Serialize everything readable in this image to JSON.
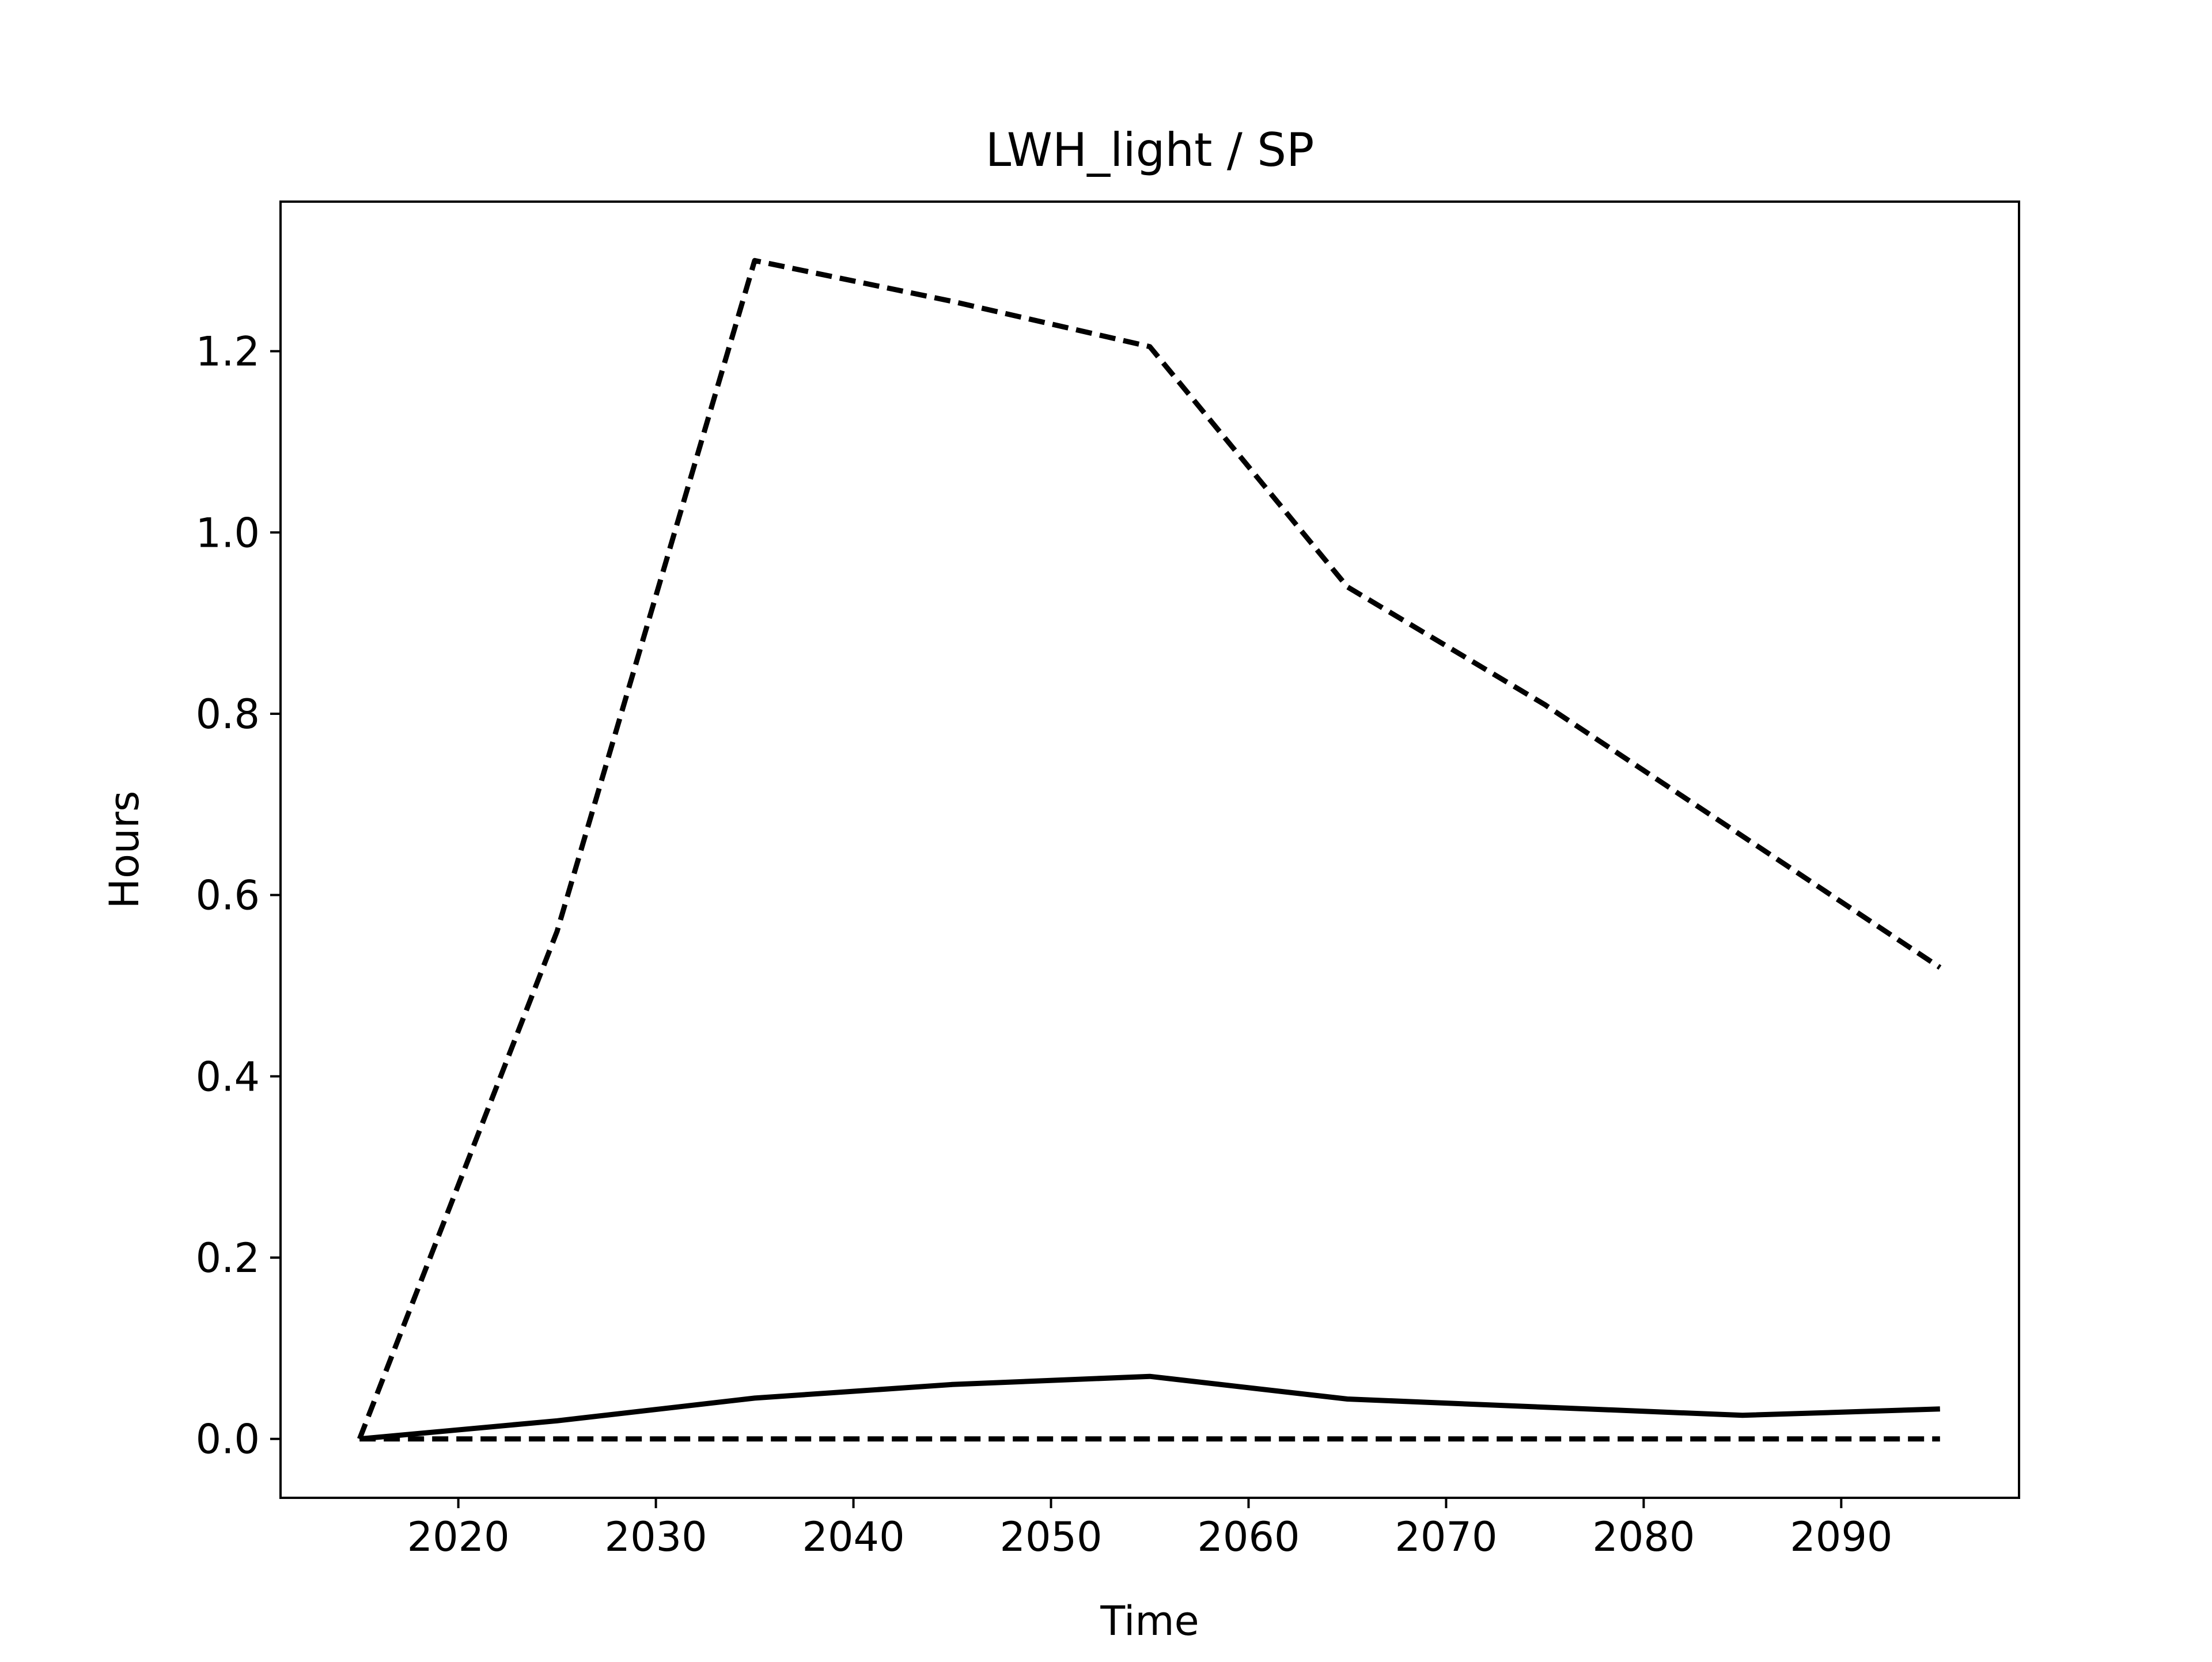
{
  "chart_data": {
    "type": "line",
    "title": "LWH_light / SP",
    "xlabel": "Time",
    "ylabel": "Hours",
    "xlim": [
      2011,
      2099
    ],
    "ylim": [
      -0.065,
      1.365
    ],
    "xticks": [
      2020,
      2030,
      2040,
      2050,
      2060,
      2070,
      2080,
      2090
    ],
    "xtick_labels": [
      "2020",
      "2030",
      "2040",
      "2050",
      "2060",
      "2070",
      "2080",
      "2090"
    ],
    "yticks": [
      0.0,
      0.2,
      0.4,
      0.6,
      0.8,
      1.0,
      1.2
    ],
    "ytick_labels": [
      "0.0",
      "0.2",
      "0.4",
      "0.6",
      "0.8",
      "1.0",
      "1.2"
    ],
    "grid": false,
    "legend": "none",
    "x": [
      2015,
      2025,
      2035,
      2045,
      2055,
      2065,
      2075,
      2085,
      2095
    ],
    "series": [
      {
        "style": "dashed",
        "color": "#000000",
        "values": [
          0.0,
          0.56,
          1.3,
          1.255,
          1.205,
          0.94,
          0.81,
          0.665,
          0.52
        ]
      },
      {
        "style": "solid",
        "color": "#000000",
        "values": [
          0.0,
          0.02,
          0.045,
          0.06,
          0.069,
          0.044,
          0.035,
          0.026,
          0.033
        ]
      },
      {
        "style": "dashed",
        "color": "#000000",
        "values": [
          0.0,
          0.0,
          0.0,
          0.0,
          0.0,
          0.0,
          0.0,
          0.0,
          0.0
        ]
      }
    ]
  }
}
